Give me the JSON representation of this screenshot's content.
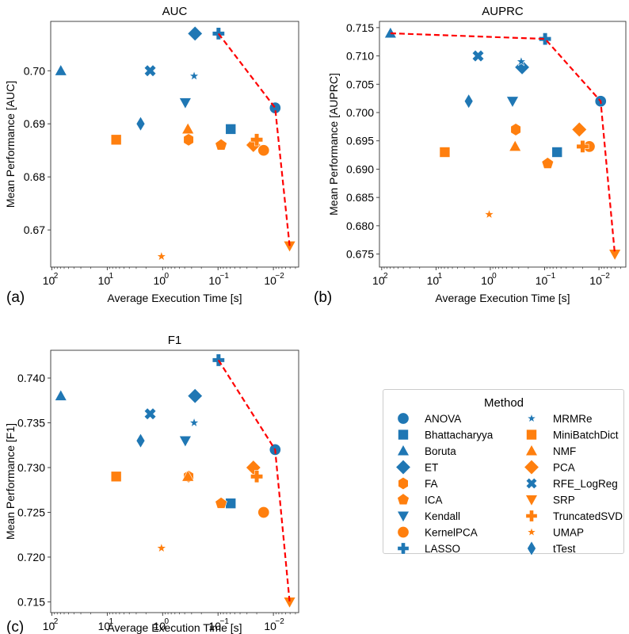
{
  "figure": {
    "panel_labels": [
      "(a)",
      "(b)",
      "(c)"
    ],
    "legend": {
      "title": "Method",
      "entries": [
        {
          "name": "ANOVA",
          "color": "#1f77b4",
          "marker": "circle"
        },
        {
          "name": "Bhattacharyya",
          "color": "#1f77b4",
          "marker": "square"
        },
        {
          "name": "Boruta",
          "color": "#1f77b4",
          "marker": "triangle-up"
        },
        {
          "name": "ET",
          "color": "#1f77b4",
          "marker": "diamond"
        },
        {
          "name": "FA",
          "color": "#ff7f0e",
          "marker": "hexagon"
        },
        {
          "name": "ICA",
          "color": "#ff7f0e",
          "marker": "pentagon"
        },
        {
          "name": "Kendall",
          "color": "#1f77b4",
          "marker": "triangle-down"
        },
        {
          "name": "KernelPCA",
          "color": "#ff7f0e",
          "marker": "circle"
        },
        {
          "name": "LASSO",
          "color": "#1f77b4",
          "marker": "plus"
        },
        {
          "name": "MRMRe",
          "color": "#1f77b4",
          "marker": "star"
        },
        {
          "name": "MiniBatchDict",
          "color": "#ff7f0e",
          "marker": "square"
        },
        {
          "name": "NMF",
          "color": "#ff7f0e",
          "marker": "triangle-up"
        },
        {
          "name": "PCA",
          "color": "#ff7f0e",
          "marker": "diamond"
        },
        {
          "name": "RFE_LogReg",
          "color": "#1f77b4",
          "marker": "x"
        },
        {
          "name": "SRP",
          "color": "#ff7f0e",
          "marker": "triangle-down"
        },
        {
          "name": "TruncatedSVD",
          "color": "#ff7f0e",
          "marker": "plus"
        },
        {
          "name": "UMAP",
          "color": "#ff7f0e",
          "marker": "star"
        },
        {
          "name": "tTest",
          "color": "#1f77b4",
          "marker": "thin-diamond"
        }
      ]
    },
    "pareto_color": "#ff0000"
  },
  "chart_data": [
    {
      "type": "scatter",
      "title": "AUC",
      "xlabel": "Average Execution Time [s]",
      "ylabel": "Mean Performance [AUC]",
      "xscale": "log",
      "x_reversed": true,
      "xlim": [
        105,
        0.0035
      ],
      "ylim": [
        0.663,
        0.7093
      ],
      "xticks": [
        100,
        10,
        1,
        0.1,
        0.01
      ],
      "xtick_labels": [
        "10^2",
        "10^1",
        "10^0",
        "10^-1",
        "10^-2"
      ],
      "yticks": [
        0.67,
        0.68,
        0.69,
        0.7
      ],
      "ytick_labels": [
        "0.67",
        "0.68",
        "0.69",
        "0.70"
      ],
      "grid": false,
      "points": [
        {
          "method": "ANOVA",
          "x": 0.0093,
          "y": 0.693
        },
        {
          "method": "Bhattacharyya",
          "x": 0.059,
          "y": 0.689
        },
        {
          "method": "Boruta",
          "x": 69,
          "y": 0.7
        },
        {
          "method": "ET",
          "x": 0.26,
          "y": 0.707
        },
        {
          "method": "FA",
          "x": 0.34,
          "y": 0.687
        },
        {
          "method": "ICA",
          "x": 0.088,
          "y": 0.686
        },
        {
          "method": "Kendall",
          "x": 0.39,
          "y": 0.694
        },
        {
          "method": "KernelPCA",
          "x": 0.015,
          "y": 0.685
        },
        {
          "method": "LASSO",
          "x": 0.098,
          "y": 0.707
        },
        {
          "method": "MRMRe",
          "x": 0.27,
          "y": 0.699
        },
        {
          "method": "MiniBatchDict",
          "x": 6.9,
          "y": 0.687
        },
        {
          "method": "NMF",
          "x": 0.35,
          "y": 0.689
        },
        {
          "method": "PCA",
          "x": 0.023,
          "y": 0.686
        },
        {
          "method": "RFE_LogReg",
          "x": 1.68,
          "y": 0.7
        },
        {
          "method": "SRP",
          "x": 0.0051,
          "y": 0.667
        },
        {
          "method": "TruncatedSVD",
          "x": 0.02,
          "y": 0.687
        },
        {
          "method": "UMAP",
          "x": 1.05,
          "y": 0.665
        },
        {
          "method": "tTest",
          "x": 2.5,
          "y": 0.69
        }
      ],
      "pareto_front": [
        "LASSO",
        "ANOVA",
        "SRP"
      ]
    },
    {
      "type": "scatter",
      "title": "AUPRC",
      "xlabel": "Average Execution Time [s]",
      "ylabel": "Mean Performance [AUPRC]",
      "xscale": "log",
      "x_reversed": true,
      "xlim": [
        110,
        0.0032
      ],
      "ylim": [
        0.6727,
        0.7161
      ],
      "xticks": [
        100,
        10,
        1,
        0.1,
        0.01
      ],
      "xtick_labels": [
        "10^2",
        "10^1",
        "10^0",
        "10^-1",
        "10^-2"
      ],
      "yticks": [
        0.675,
        0.68,
        0.685,
        0.69,
        0.695,
        0.7,
        0.705,
        0.71,
        0.715
      ],
      "ytick_labels": [
        "0.675",
        "0.680",
        "0.685",
        "0.690",
        "0.695",
        "0.700",
        "0.705",
        "0.710",
        "0.715"
      ],
      "grid": false,
      "points": [
        {
          "method": "ANOVA",
          "x": 0.0093,
          "y": 0.702
        },
        {
          "method": "Bhattacharyya",
          "x": 0.059,
          "y": 0.693
        },
        {
          "method": "Boruta",
          "x": 69,
          "y": 0.714
        },
        {
          "method": "ET",
          "x": 0.26,
          "y": 0.708
        },
        {
          "method": "FA",
          "x": 0.34,
          "y": 0.697
        },
        {
          "method": "ICA",
          "x": 0.088,
          "y": 0.691
        },
        {
          "method": "Kendall",
          "x": 0.39,
          "y": 0.702
        },
        {
          "method": "KernelPCA",
          "x": 0.015,
          "y": 0.694
        },
        {
          "method": "LASSO",
          "x": 0.098,
          "y": 0.713
        },
        {
          "method": "MRMRe",
          "x": 0.27,
          "y": 0.709
        },
        {
          "method": "MiniBatchDict",
          "x": 6.9,
          "y": 0.693
        },
        {
          "method": "NMF",
          "x": 0.35,
          "y": 0.694
        },
        {
          "method": "PCA",
          "x": 0.023,
          "y": 0.697
        },
        {
          "method": "RFE_LogReg",
          "x": 1.68,
          "y": 0.71
        },
        {
          "method": "SRP",
          "x": 0.0051,
          "y": 0.675
        },
        {
          "method": "TruncatedSVD",
          "x": 0.02,
          "y": 0.694
        },
        {
          "method": "UMAP",
          "x": 1.05,
          "y": 0.682
        },
        {
          "method": "tTest",
          "x": 2.5,
          "y": 0.702
        }
      ],
      "pareto_front": [
        "Boruta",
        "LASSO",
        "ANOVA",
        "SRP"
      ]
    },
    {
      "type": "scatter",
      "title": "F1",
      "xlabel": "Average Execution Time [s]",
      "ylabel": "Mean Performance [F1]",
      "xscale": "log",
      "x_reversed": true,
      "xlim": [
        105,
        0.0035
      ],
      "ylim": [
        0.7138,
        0.7431
      ],
      "xticks": [
        100,
        10,
        1,
        0.1,
        0.01
      ],
      "xtick_labels": [
        "10^2",
        "10^1",
        "10^0",
        "10^-1",
        "10^-2"
      ],
      "yticks": [
        0.715,
        0.72,
        0.725,
        0.73,
        0.735,
        0.74
      ],
      "ytick_labels": [
        "0.715",
        "0.720",
        "0.725",
        "0.730",
        "0.735",
        "0.740"
      ],
      "grid": false,
      "points": [
        {
          "method": "ANOVA",
          "x": 0.0093,
          "y": 0.732
        },
        {
          "method": "Bhattacharyya",
          "x": 0.059,
          "y": 0.726
        },
        {
          "method": "Boruta",
          "x": 69,
          "y": 0.738
        },
        {
          "method": "ET",
          "x": 0.26,
          "y": 0.738
        },
        {
          "method": "FA",
          "x": 0.34,
          "y": 0.729
        },
        {
          "method": "ICA",
          "x": 0.088,
          "y": 0.726
        },
        {
          "method": "Kendall",
          "x": 0.39,
          "y": 0.733
        },
        {
          "method": "KernelPCA",
          "x": 0.015,
          "y": 0.725
        },
        {
          "method": "LASSO",
          "x": 0.098,
          "y": 0.742
        },
        {
          "method": "MRMRe",
          "x": 0.27,
          "y": 0.735
        },
        {
          "method": "MiniBatchDict",
          "x": 6.9,
          "y": 0.729
        },
        {
          "method": "NMF",
          "x": 0.35,
          "y": 0.729
        },
        {
          "method": "PCA",
          "x": 0.023,
          "y": 0.73
        },
        {
          "method": "RFE_LogReg",
          "x": 1.68,
          "y": 0.736
        },
        {
          "method": "SRP",
          "x": 0.0051,
          "y": 0.715
        },
        {
          "method": "TruncatedSVD",
          "x": 0.02,
          "y": 0.729
        },
        {
          "method": "UMAP",
          "x": 1.05,
          "y": 0.721
        },
        {
          "method": "tTest",
          "x": 2.5,
          "y": 0.733
        }
      ],
      "pareto_front": [
        "LASSO",
        "ANOVA",
        "SRP"
      ]
    }
  ]
}
